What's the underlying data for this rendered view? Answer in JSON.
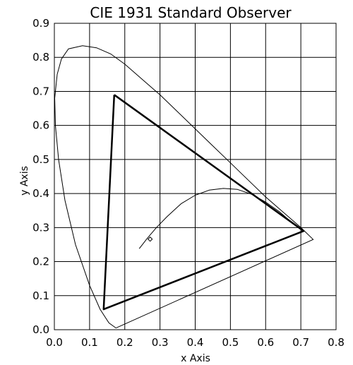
{
  "chart_data": {
    "type": "line",
    "title": "CIE 1931 Standard Observer",
    "xlabel": "x Axis",
    "ylabel": "y Axis",
    "xlim": [
      0.0,
      0.8
    ],
    "ylim": [
      0.0,
      0.9
    ],
    "xticks": [
      "0.0",
      "0.1",
      "0.2",
      "0.3",
      "0.4",
      "0.5",
      "0.6",
      "0.7",
      "0.8"
    ],
    "yticks": [
      "0.0",
      "0.1",
      "0.2",
      "0.3",
      "0.4",
      "0.5",
      "0.6",
      "0.7",
      "0.8",
      "0.9"
    ],
    "grid": true,
    "legend": "none",
    "series": [
      {
        "kind": "spectral-locus",
        "x": [
          0.175,
          0.155,
          0.13,
          0.1,
          0.06,
          0.03,
          0.012,
          0.003,
          0.001,
          0.008,
          0.02,
          0.04,
          0.08,
          0.12,
          0.16,
          0.2,
          0.25,
          0.3,
          0.35,
          0.4,
          0.45,
          0.5,
          0.55,
          0.6,
          0.65,
          0.7,
          0.735,
          0.175
        ],
        "y": [
          0.005,
          0.02,
          0.06,
          0.13,
          0.25,
          0.38,
          0.5,
          0.6,
          0.68,
          0.75,
          0.795,
          0.825,
          0.834,
          0.828,
          0.81,
          0.78,
          0.735,
          0.69,
          0.64,
          0.59,
          0.54,
          0.49,
          0.44,
          0.39,
          0.345,
          0.3,
          0.265,
          0.005
        ]
      },
      {
        "kind": "gamut-triangle",
        "x": [
          0.17,
          0.708,
          0.14,
          0.17
        ],
        "y": [
          0.69,
          0.29,
          0.06,
          0.69
        ]
      },
      {
        "kind": "planckian-locus",
        "x": [
          0.241,
          0.25,
          0.265,
          0.29,
          0.32,
          0.36,
          0.4,
          0.44,
          0.48,
          0.52,
          0.56,
          0.6,
          0.64,
          0.68,
          0.708
        ],
        "y": [
          0.238,
          0.25,
          0.27,
          0.3,
          0.332,
          0.37,
          0.395,
          0.41,
          0.415,
          0.412,
          0.398,
          0.375,
          0.346,
          0.31,
          0.29
        ]
      }
    ],
    "white_point": {
      "x": 0.272,
      "y": 0.266
    }
  }
}
